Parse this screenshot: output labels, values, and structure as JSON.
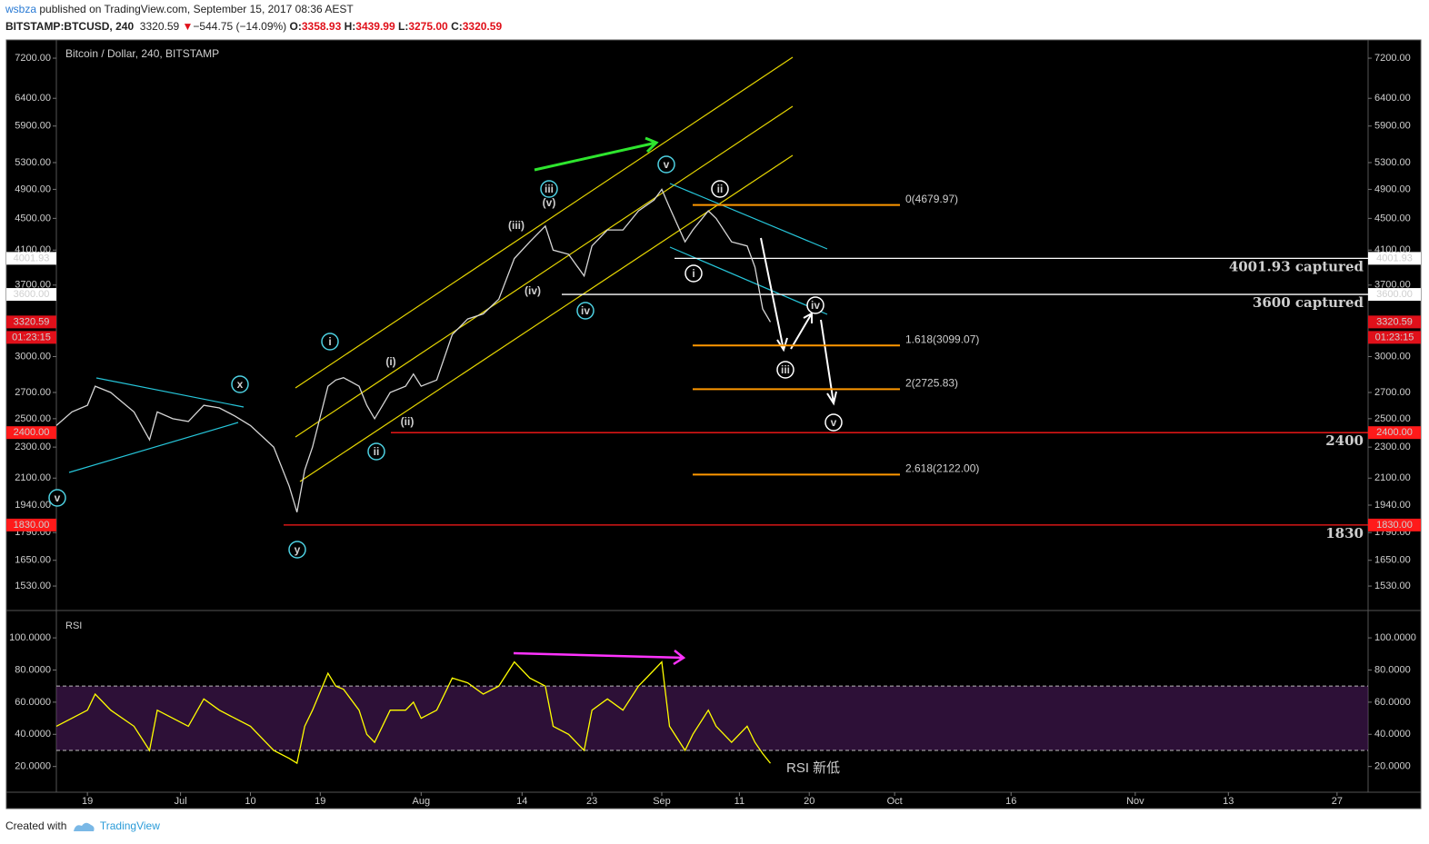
{
  "header": {
    "user": "wsbza",
    "published": "published on TradingView.com, September 15, 2017 08:36 AEST",
    "symbol": "BITSTAMP:BTCUSD, 240",
    "last": "3320.59",
    "arrow": "▼",
    "change": "−544.75 (−14.09%)",
    "o_label": "O:",
    "open": "3358.93",
    "h_label": "H:",
    "high": "3439.99",
    "l_label": "L:",
    "low": "3275.00",
    "c_label": "C:",
    "close": "3320.59"
  },
  "footer": {
    "created": "Created with",
    "brand": "TradingView"
  },
  "chart_data": [
    {
      "type": "line",
      "title": "Bitcoin / Dollar, 240, BITSTAMP",
      "log_scale": true,
      "color": "#d6d6d6",
      "x": [
        "2017-06-15",
        "2017-06-17",
        "2017-06-19",
        "2017-06-20",
        "2017-06-22",
        "2017-06-25",
        "2017-06-27",
        "2017-06-28",
        "2017-06-30",
        "2017-07-02",
        "2017-07-04",
        "2017-07-06",
        "2017-07-08",
        "2017-07-10",
        "2017-07-12",
        "2017-07-13",
        "2017-07-15",
        "2017-07-16",
        "2017-07-17",
        "2017-07-18",
        "2017-07-20",
        "2017-07-21",
        "2017-07-22",
        "2017-07-24",
        "2017-07-25",
        "2017-07-26",
        "2017-07-28",
        "2017-07-30",
        "2017-07-31",
        "2017-08-01",
        "2017-08-03",
        "2017-08-05",
        "2017-08-07",
        "2017-08-09",
        "2017-08-11",
        "2017-08-13",
        "2017-08-15",
        "2017-08-17",
        "2017-08-18",
        "2017-08-20",
        "2017-08-22",
        "2017-08-23",
        "2017-08-25",
        "2017-08-27",
        "2017-08-29",
        "2017-08-31",
        "2017-09-01",
        "2017-09-02",
        "2017-09-04",
        "2017-09-05",
        "2017-09-07",
        "2017-09-08",
        "2017-09-10",
        "2017-09-12",
        "2017-09-13",
        "2017-09-14",
        "2017-09-15"
      ],
      "values": [
        2450,
        2550,
        2600,
        2750,
        2700,
        2550,
        2350,
        2550,
        2500,
        2480,
        2600,
        2580,
        2520,
        2450,
        2350,
        2300,
        2050,
        1900,
        2150,
        2300,
        2750,
        2800,
        2820,
        2750,
        2600,
        2500,
        2700,
        2750,
        2850,
        2750,
        2800,
        3200,
        3350,
        3400,
        3550,
        4000,
        4200,
        4400,
        4100,
        4050,
        3800,
        4150,
        4350,
        4350,
        4600,
        4750,
        4900,
        4650,
        4200,
        4350,
        4600,
        4500,
        4200,
        4150,
        3900,
        3450,
        3320.59
      ],
      "xlim": [
        "2017-06-15",
        "2017-12-01"
      ],
      "xticks": [
        {
          "value": "2017-06-19",
          "label": "19"
        },
        {
          "value": "2017-07-01",
          "label": "Jul"
        },
        {
          "value": "2017-07-10",
          "label": "10"
        },
        {
          "value": "2017-07-19",
          "label": "19"
        },
        {
          "value": "2017-08-01",
          "label": "Aug"
        },
        {
          "value": "2017-08-14",
          "label": "14"
        },
        {
          "value": "2017-08-23",
          "label": "23"
        },
        {
          "value": "2017-09-01",
          "label": "Sep"
        },
        {
          "value": "2017-09-11",
          "label": "11"
        },
        {
          "value": "2017-09-20",
          "label": "20"
        },
        {
          "value": "2017-10-01",
          "label": "Oct"
        },
        {
          "value": "2017-10-16",
          "label": "16"
        },
        {
          "value": "2017-11-01",
          "label": "Nov"
        },
        {
          "value": "2017-11-13",
          "label": "13"
        },
        {
          "value": "2017-11-27",
          "label": "27"
        }
      ],
      "ylim": [
        1424,
        7595
      ],
      "yticks": [
        {
          "value": 1530,
          "label": "1530.00"
        },
        {
          "value": 1650,
          "label": "1650.00"
        },
        {
          "value": 1790,
          "label": "1790.00"
        },
        {
          "value": 1940,
          "label": "1940.00"
        },
        {
          "value": 2100,
          "label": "2100.00"
        },
        {
          "value": 2300,
          "label": "2300.00"
        },
        {
          "value": 2500,
          "label": "2500.00"
        },
        {
          "value": 2700,
          "label": "2700.00"
        },
        {
          "value": 3000,
          "label": "3000.00"
        },
        {
          "value": 3700,
          "label": "3700.00"
        },
        {
          "value": 4100,
          "label": "4100.00"
        },
        {
          "value": 4500,
          "label": "4500.00"
        },
        {
          "value": 4900,
          "label": "4900.00"
        },
        {
          "value": 5300,
          "label": "5300.00"
        },
        {
          "value": 5900,
          "label": "5900.00"
        },
        {
          "value": 6400,
          "label": "6400.00"
        },
        {
          "value": 7200,
          "label": "7200.00"
        }
      ],
      "levels": [
        {
          "value": 4001.93,
          "label": "4001.93 captured",
          "axis_label": "4001.93",
          "color": "#ffffff"
        },
        {
          "value": 3600,
          "label": "3600 captured",
          "axis_label": "3600.00",
          "color": "#ffffff"
        },
        {
          "value": 2400,
          "label": "2400",
          "axis_label": "2400.00",
          "color": "#ff1a1a"
        },
        {
          "value": 1830,
          "label": "1830",
          "axis_label": "1830.00",
          "color": "#ff1a1a"
        }
      ],
      "fib_color": "#ff9800",
      "fib": [
        {
          "value": 4679.97,
          "label": "0(4679.97)"
        },
        {
          "value": 3099.07,
          "label": "1.618(3099.07)"
        },
        {
          "value": 2725.83,
          "label": "2(2725.83)"
        },
        {
          "value": 2122.0,
          "label": "2.618(2122.00)"
        }
      ],
      "last_price": {
        "value": 3320.59,
        "label": "3320.59",
        "countdown": "01:23:15",
        "color": "#e0101a"
      },
      "annotations": [
        {
          "text": "v",
          "color": "#4dd0e1",
          "circled": true
        },
        {
          "text": "x",
          "color": "#4dd0e1",
          "circled": true
        },
        {
          "text": "y",
          "color": "#4dd0e1",
          "circled": true
        },
        {
          "text": "i",
          "color": "#4dd0e1",
          "circled": true
        },
        {
          "text": "ii",
          "color": "#4dd0e1",
          "circled": true
        },
        {
          "text": "iii",
          "color": "#4dd0e1",
          "circled": true
        },
        {
          "text": "iv",
          "color": "#4dd0e1",
          "circled": true
        },
        {
          "text": "v",
          "color": "#4dd0e1",
          "circled": true
        },
        {
          "text": "(i)",
          "color": "#e040fb",
          "circled": false
        },
        {
          "text": "(ii)",
          "color": "#e040fb",
          "circled": false
        },
        {
          "text": "(iii)",
          "color": "#e040fb",
          "circled": false
        },
        {
          "text": "(iv)",
          "color": "#e040fb",
          "circled": false
        },
        {
          "text": "(v)",
          "color": "#e040fb",
          "circled": false
        },
        {
          "text": "i",
          "color": "#ffffff",
          "circled": true
        },
        {
          "text": "ii",
          "color": "#ffffff",
          "circled": true
        },
        {
          "text": "iii",
          "color": "#ffffff",
          "circled": true
        },
        {
          "text": "iv",
          "color": "#ffffff",
          "circled": true
        },
        {
          "text": "v",
          "color": "#ffffff",
          "circled": true
        }
      ]
    },
    {
      "type": "line",
      "title": "RSI",
      "color": "#ffff00",
      "note": "RSI 新低",
      "note_color": "#22dd22",
      "band": [
        30,
        70
      ],
      "band_color": "#5a1f6e",
      "x": [
        "2017-06-15",
        "2017-06-17",
        "2017-06-19",
        "2017-06-20",
        "2017-06-22",
        "2017-06-25",
        "2017-06-27",
        "2017-06-28",
        "2017-06-30",
        "2017-07-02",
        "2017-07-04",
        "2017-07-06",
        "2017-07-08",
        "2017-07-10",
        "2017-07-12",
        "2017-07-13",
        "2017-07-15",
        "2017-07-16",
        "2017-07-17",
        "2017-07-18",
        "2017-07-20",
        "2017-07-21",
        "2017-07-22",
        "2017-07-24",
        "2017-07-25",
        "2017-07-26",
        "2017-07-28",
        "2017-07-30",
        "2017-07-31",
        "2017-08-01",
        "2017-08-03",
        "2017-08-05",
        "2017-08-07",
        "2017-08-09",
        "2017-08-11",
        "2017-08-13",
        "2017-08-15",
        "2017-08-17",
        "2017-08-18",
        "2017-08-20",
        "2017-08-22",
        "2017-08-23",
        "2017-08-25",
        "2017-08-27",
        "2017-08-29",
        "2017-08-31",
        "2017-09-01",
        "2017-09-02",
        "2017-09-04",
        "2017-09-05",
        "2017-09-07",
        "2017-09-08",
        "2017-09-10",
        "2017-09-12",
        "2017-09-13",
        "2017-09-14",
        "2017-09-15"
      ],
      "values": [
        45,
        50,
        55,
        65,
        55,
        45,
        30,
        55,
        50,
        45,
        62,
        55,
        50,
        45,
        35,
        30,
        25,
        22,
        45,
        55,
        78,
        70,
        68,
        55,
        40,
        35,
        55,
        55,
        60,
        50,
        55,
        75,
        72,
        65,
        70,
        85,
        75,
        70,
        45,
        40,
        30,
        55,
        62,
        55,
        70,
        80,
        85,
        45,
        30,
        40,
        55,
        45,
        35,
        45,
        35,
        28,
        22
      ],
      "xlim": [
        "2017-06-15",
        "2017-12-01"
      ],
      "ylim": [
        4,
        117
      ],
      "yticks": [
        {
          "value": 20,
          "label": "20.0000"
        },
        {
          "value": 40,
          "label": "40.0000"
        },
        {
          "value": 60,
          "label": "60.0000"
        },
        {
          "value": 80,
          "label": "80.0000"
        },
        {
          "value": 100,
          "label": "100.0000"
        }
      ]
    }
  ]
}
